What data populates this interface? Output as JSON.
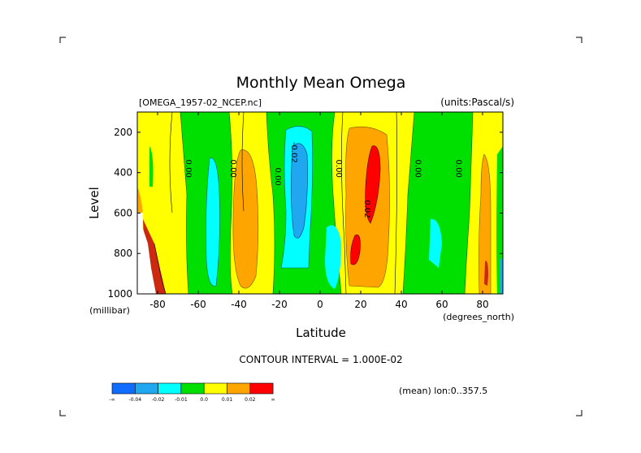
{
  "chart_data": {
    "type": "heatmap",
    "title": "Monthly Mean Omega",
    "subtitle_left": "[OMEGA_1957-02_NCEP.nc]",
    "subtitle_right": "(units:Pascal/s)",
    "xlabel": "Latitude",
    "xunits": "(degrees_north)",
    "ylabel": "Level",
    "yunits": "(millibar)",
    "xlim": [
      -90,
      90
    ],
    "ylim": [
      1000,
      100
    ],
    "xticks": [
      -80,
      -60,
      -40,
      -20,
      0,
      20,
      40,
      60,
      80
    ],
    "yticks": [
      200,
      400,
      600,
      800,
      1000
    ],
    "contour_interval_text": "CONTOUR INTERVAL = 1.000E-02",
    "mean_note": "(mean) lon:0..357.5",
    "legend": {
      "colors": [
        "#0f6cff",
        "#1fa8f0",
        "#00ffff",
        "#00e000",
        "#ffff00",
        "#ffa500",
        "#ff0000"
      ],
      "labels": [
        "-∞",
        "-0.04",
        "-0.02",
        "-0.01",
        "0.0",
        "0.01",
        "0.02",
        "∞"
      ]
    },
    "bands_by_latitude": [
      {
        "lat": -90,
        "value": "0.00 to 0.01"
      },
      {
        "lat": -85,
        "value": "0.01 to 0.02"
      },
      {
        "lat": -80,
        "value": "0.00 to 0.01"
      },
      {
        "lat": -68,
        "value": "-0.01 to 0.00"
      },
      {
        "lat": -58,
        "value": "-0.02 to -0.01"
      },
      {
        "lat": -48,
        "value": "0.00 to 0.01"
      },
      {
        "lat": -40,
        "value": "0.01 to 0.02"
      },
      {
        "lat": -30,
        "value": "0.00 to 0.01"
      },
      {
        "lat": -20,
        "value": "-0.01 to 0.00"
      },
      {
        "lat": -10,
        "value": "-0.04 to -0.02"
      },
      {
        "lat": 0,
        "value": "-0.01 to 0.00"
      },
      {
        "lat": 10,
        "value": "0.00 to 0.01"
      },
      {
        "lat": 22,
        "value": "0.01 to 0.02"
      },
      {
        "lat": 27,
        "value": "0.02 and above"
      },
      {
        "lat": 40,
        "value": "0.00 to 0.01"
      },
      {
        "lat": 52,
        "value": "-0.01 to 0.00"
      },
      {
        "lat": 65,
        "value": "0.00 to 0.01"
      },
      {
        "lat": 82,
        "value": "0.01 to 0.02"
      },
      {
        "lat": 88,
        "value": "-0.01 to 0.00"
      }
    ],
    "contour_labels": [
      {
        "text": "0.00",
        "lat": -66,
        "level": 380
      },
      {
        "text": "0.00",
        "lat": -44,
        "level": 380
      },
      {
        "text": "0.00",
        "lat": -22,
        "level": 420
      },
      {
        "text": "-0.02",
        "lat": -14,
        "level": 300
      },
      {
        "text": "0.00",
        "lat": 8,
        "level": 380
      },
      {
        "text": "0.02",
        "lat": 22,
        "level": 580
      },
      {
        "text": "0.00",
        "lat": 47,
        "level": 380
      },
      {
        "text": "0.00",
        "lat": 67,
        "level": 380
      }
    ]
  }
}
